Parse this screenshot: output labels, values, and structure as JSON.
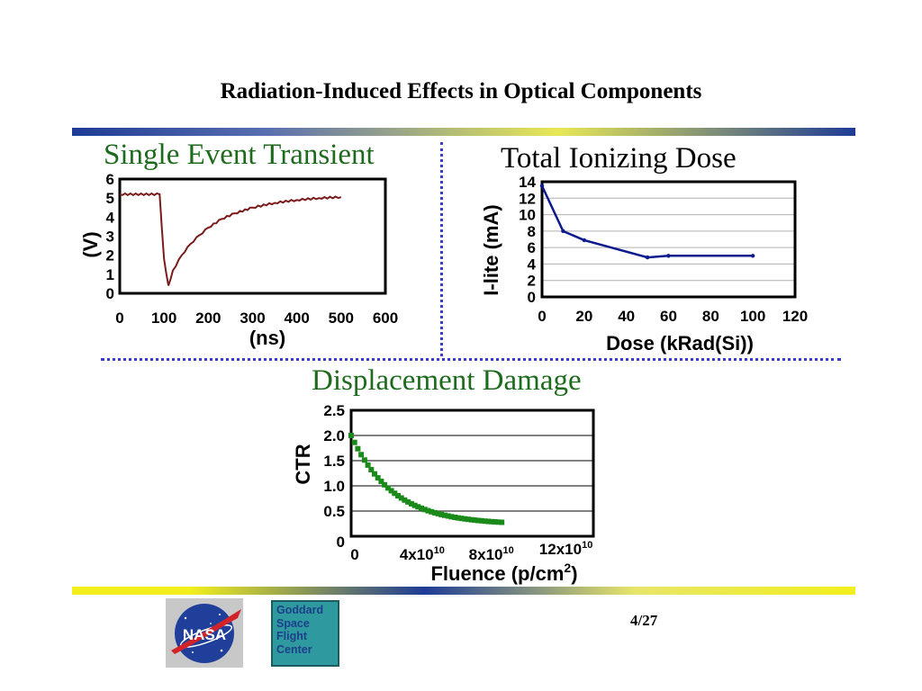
{
  "slide": {
    "title": "Radiation-Induced Effects in Optical Components",
    "page": "4/27"
  },
  "headings": {
    "set": "Single Event Transient",
    "tid": "Total Ionizing Dose",
    "dd": "Displacement Damage"
  },
  "logos": {
    "nasa_text": "NASA",
    "gsfc_text": "Goddard\nSpace\nFlight\nCenter"
  },
  "colors": {
    "heading_green": "#1e6b1e",
    "rule_blue": "#1e3c96",
    "rule_yellow": "#f2ef1c",
    "divider_dots": "#3a3acb",
    "set_trace": "#7a1a1a",
    "tid_line": "#0d1a8c",
    "dd_series": "#1a8a1a",
    "gsfc_bg": "#2e9aa0",
    "nasa_blue": "#1f3f9a",
    "nasa_red": "#d2232a"
  },
  "chart_data": [
    {
      "id": "set",
      "type": "line",
      "xlabel": "(ns)",
      "ylabel": "(V)",
      "xticks": [
        "0",
        "100",
        "200",
        "300",
        "400",
        "500",
        "600"
      ],
      "yticks": [
        "0",
        "1",
        "2",
        "3",
        "4",
        "5",
        "6"
      ],
      "xlim": [
        0,
        600
      ],
      "ylim": [
        0,
        6
      ],
      "grid": false,
      "x": [
        0,
        90,
        100,
        110,
        120,
        140,
        160,
        180,
        200,
        230,
        260,
        300,
        350,
        400,
        450,
        500
      ],
      "y": [
        5.2,
        5.2,
        1.8,
        0.4,
        1.2,
        2.0,
        2.6,
        3.05,
        3.45,
        3.9,
        4.2,
        4.5,
        4.75,
        4.9,
        5.0,
        5.05
      ]
    },
    {
      "id": "tid",
      "type": "line",
      "xlabel": "Dose (kRad(Si))",
      "ylabel": "I-lite (mA)",
      "xticks": [
        "0",
        "20",
        "40",
        "60",
        "80",
        "100",
        "120"
      ],
      "yticks": [
        "0",
        "2",
        "4",
        "6",
        "8",
        "10",
        "12",
        "14"
      ],
      "xlim": [
        0,
        120
      ],
      "ylim": [
        0,
        14
      ],
      "grid": true,
      "x": [
        0,
        10,
        20,
        50,
        60,
        100
      ],
      "y": [
        13.5,
        8.0,
        6.9,
        4.8,
        5.0,
        5.0
      ]
    },
    {
      "id": "dd",
      "type": "scatter",
      "xlabel": "Fluence (p/cm",
      "xlabel_sup": "2",
      "xlabel_tail": ")",
      "ylabel": "CTR",
      "xticks": [
        {
          "base": "0",
          "sup": ""
        },
        {
          "base": "4x10",
          "sup": "10"
        },
        {
          "base": "8x10",
          "sup": "10"
        },
        {
          "base": "12x10",
          "sup": "10"
        }
      ],
      "yticks": [
        "0",
        "0.5",
        "1.0",
        "1.5",
        "2.0",
        "2.5"
      ],
      "xlim_e10": [
        0,
        14
      ],
      "ylim": [
        0,
        2.5
      ],
      "grid": true,
      "fluence_e10_start": 0,
      "fluence_e10_end": 8.7,
      "ctr_start": 2.0,
      "ctr_end": 0.23,
      "decay_e10": 2.4,
      "points": 46
    }
  ]
}
